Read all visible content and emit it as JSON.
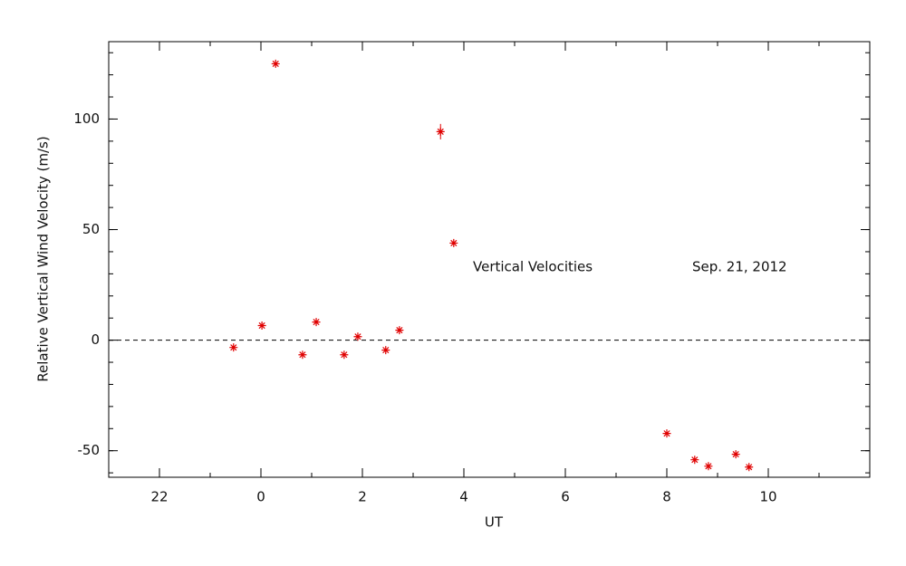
{
  "chart_data": {
    "type": "scatter",
    "xlabel": "UT",
    "ylabel": "Relative Vertical Wind Velocity (m/s)",
    "annotations": [
      "Vertical Velocities",
      "Sep. 21, 2012"
    ],
    "series": [
      {
        "color": "#e00000",
        "x": [
          -0.54,
          0.02,
          0.29,
          0.82,
          1.09,
          1.64,
          1.91,
          2.46,
          2.73,
          3.54,
          3.8,
          8.0,
          8.55,
          8.82,
          9.36,
          9.62
        ],
        "values": [
          -3.3,
          6.6,
          125,
          -6.6,
          8.2,
          -6.6,
          1.6,
          -4.5,
          4.5,
          94.3,
          43.9,
          -42.2,
          -54.1,
          -57,
          -51.6,
          -57.4
        ],
        "errors": [
          null,
          null,
          null,
          null,
          null,
          null,
          null,
          null,
          null,
          3.5,
          null,
          null,
          null,
          null,
          null,
          null
        ]
      }
    ],
    "xlim": [
      -3,
      12
    ],
    "xticks": [
      {
        "value": -2,
        "label": "22"
      },
      0,
      2,
      4,
      6,
      8,
      10
    ],
    "ylim": [
      -62,
      135
    ],
    "yticks": [
      -50,
      0,
      50,
      100
    ],
    "zero_line": true
  }
}
